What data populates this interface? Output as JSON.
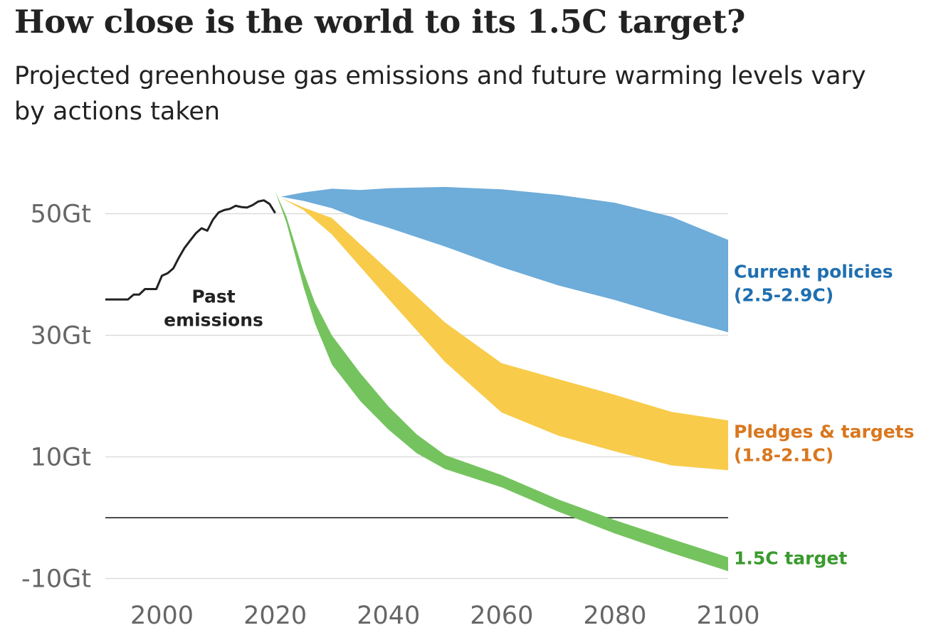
{
  "chart_data": {
    "type": "area",
    "title": "How close is the world to its 1.5C target?",
    "subtitle": "Projected greenhouse gas emissions and future warming levels vary by actions taken",
    "xlabel": "",
    "ylabel": "",
    "xlim": [
      1990,
      2100
    ],
    "ylim": [
      -12,
      56
    ],
    "x_ticks": [
      "2000",
      "2020",
      "2040",
      "2060",
      "2080",
      "2100"
    ],
    "x_tick_values": [
      2000,
      2020,
      2040,
      2060,
      2080,
      2100
    ],
    "y_ticks": [
      "50Gt",
      "30Gt",
      "10Gt",
      "-10Gt"
    ],
    "y_tick_values": [
      50,
      30,
      10,
      -10
    ],
    "zero_line": 0,
    "grid": true,
    "series": [
      {
        "name": "Past emissions",
        "kind": "line",
        "color": "#222222",
        "label_lines": [
          "Past",
          "emissions"
        ],
        "x": [
          1990,
          1991,
          1992,
          1993,
          1994,
          1995,
          1996,
          1997,
          1998,
          1999,
          2000,
          2001,
          2002,
          2003,
          2004,
          2005,
          2006,
          2007,
          2008,
          2009,
          2010,
          2011,
          2012,
          2013,
          2014,
          2015,
          2016,
          2017,
          2018,
          2019,
          2020
        ],
        "values": [
          35.9,
          35.9,
          35.9,
          35.9,
          35.9,
          36.7,
          36.7,
          37.6,
          37.6,
          37.6,
          39.8,
          40.2,
          41.0,
          42.8,
          44.4,
          45.6,
          46.8,
          47.6,
          47.2,
          49.0,
          50.2,
          50.6,
          50.8,
          51.3,
          51.1,
          51.0,
          51.4,
          52.0,
          52.2,
          51.6,
          50.1
        ]
      },
      {
        "name": "Current policies",
        "label_lines": [
          "Current policies",
          "(2.5-2.9C)"
        ],
        "color": "#6eacd9",
        "label_color": "#1f6fb0",
        "x": [
          2021,
          2025,
          2030,
          2035,
          2040,
          2050,
          2060,
          2070,
          2080,
          2090,
          2100
        ],
        "upper": [
          52.8,
          53.5,
          54.1,
          53.9,
          54.2,
          54.4,
          54.0,
          53.1,
          51.8,
          49.5,
          45.7
        ],
        "lower": [
          52.8,
          52.1,
          50.9,
          49.1,
          47.7,
          44.6,
          41.2,
          38.2,
          35.8,
          33.0,
          30.5
        ]
      },
      {
        "name": "Pledges & targets",
        "label_lines": [
          "Pledges & targets",
          "(1.8-2.1C)"
        ],
        "color": "#f8cb4a",
        "label_color": "#d9771e",
        "x": [
          2021,
          2025,
          2030,
          2040,
          2050,
          2060,
          2070,
          2080,
          2090,
          2100
        ],
        "upper": [
          52.6,
          51.0,
          49.3,
          40.7,
          32.1,
          25.4,
          22.8,
          20.2,
          17.4,
          16.0
        ],
        "lower": [
          52.6,
          50.6,
          46.6,
          36.0,
          25.6,
          17.3,
          13.5,
          10.9,
          8.6,
          7.8
        ]
      },
      {
        "name": "1.5C target",
        "label_lines": [
          "1.5C target"
        ],
        "color": "#75c35f",
        "label_color": "#3a9a2e",
        "x": [
          2020,
          2022,
          2025,
          2027,
          2030,
          2035,
          2040,
          2045,
          2050,
          2060,
          2070,
          2080,
          2090,
          2100
        ],
        "upper": [
          53.7,
          49.5,
          40.5,
          35.4,
          30.0,
          23.8,
          18.3,
          13.7,
          10.3,
          7.0,
          3.0,
          -0.4,
          -3.5,
          -6.5
        ],
        "lower": [
          53.7,
          48.5,
          38.0,
          32.0,
          25.2,
          19.2,
          14.5,
          10.6,
          8.0,
          5.0,
          1.0,
          -2.6,
          -5.8,
          -8.8
        ]
      }
    ]
  }
}
